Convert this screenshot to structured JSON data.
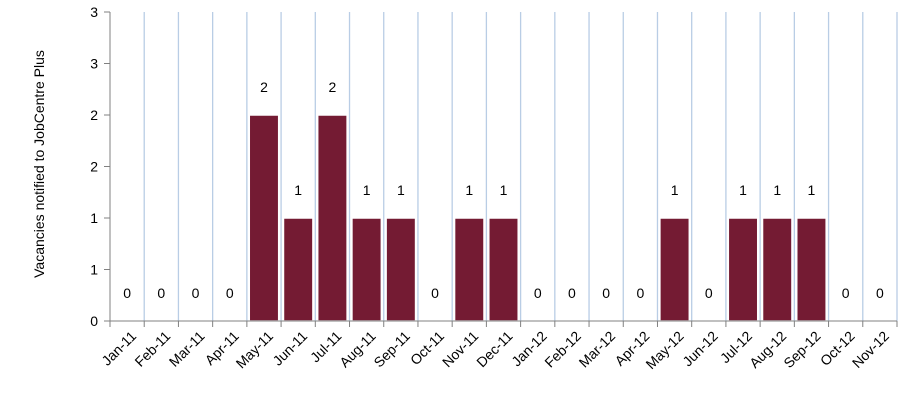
{
  "chart_data": {
    "type": "bar",
    "title": "",
    "xlabel": "",
    "ylabel": "Vacancies notified to JobCentre Plus",
    "categories": [
      "Jan-11",
      "Feb-11",
      "Mar-11",
      "Apr-11",
      "May-11",
      "Jun-11",
      "Jul-11",
      "Aug-11",
      "Sep-11",
      "Oct-11",
      "Nov-11",
      "Dec-11",
      "Jan-12",
      "Feb-12",
      "Mar-12",
      "Apr-12",
      "May-12",
      "Jun-12",
      "Jul-12",
      "Aug-12",
      "Sep-12",
      "Oct-12",
      "Nov-12"
    ],
    "values": [
      0,
      0,
      0,
      0,
      2,
      1,
      2,
      1,
      1,
      0,
      1,
      1,
      0,
      0,
      0,
      0,
      1,
      0,
      1,
      1,
      1,
      0,
      0
    ],
    "y_tick_values": [
      0,
      0.5,
      1,
      1.5,
      2,
      2.5,
      3
    ],
    "y_tick_labels": [
      "0",
      "1",
      "1",
      "2",
      "2",
      "3",
      "3"
    ],
    "ylim": [
      0,
      3
    ],
    "grid": "vertical",
    "legend": "none",
    "bar_color": "#741b33",
    "grid_color": "#b9cde5"
  }
}
